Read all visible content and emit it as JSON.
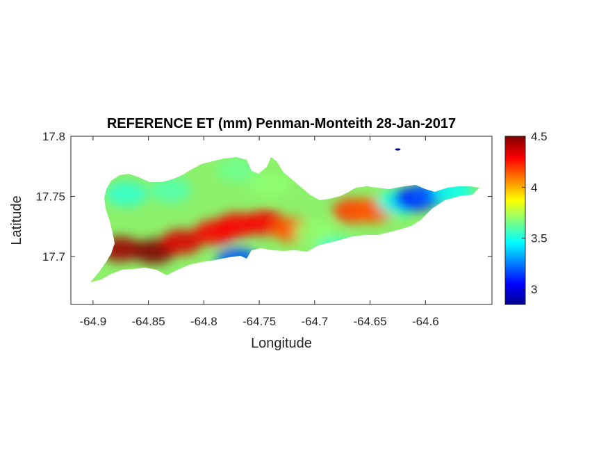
{
  "chart_data": {
    "type": "heatmap",
    "title": "REFERENCE ET (mm) Penman-Monteith 28-Jan-2017",
    "xlabel": "Longitude",
    "ylabel": "Latitude",
    "xlim": [
      -64.92,
      -64.54
    ],
    "ylim": [
      17.66,
      17.8
    ],
    "x_ticks": [
      -64.9,
      -64.85,
      -64.8,
      -64.75,
      -64.7,
      -64.65,
      -64.6
    ],
    "x_tick_labels": [
      "-64.9",
      "-64.85",
      "-64.8",
      "-64.75",
      "-64.7",
      "-64.65",
      "-64.6"
    ],
    "y_ticks": [
      17.7,
      17.75,
      17.8
    ],
    "y_tick_labels": [
      "17.7",
      "17.75",
      "17.8"
    ],
    "grid": false,
    "colormap": "jet",
    "colorbar": {
      "range": [
        2.85,
        4.5
      ],
      "ticks": [
        3,
        3.5,
        4,
        4.5
      ],
      "tick_labels": [
        "3",
        "3.5",
        "4",
        "4.5"
      ],
      "placement": "right"
    },
    "hotspots": [
      {
        "lon": -64.875,
        "lat": 17.706,
        "value": 4.45
      },
      {
        "lon": -64.845,
        "lat": 17.704,
        "value": 4.5
      },
      {
        "lon": -64.82,
        "lat": 17.712,
        "value": 4.35
      },
      {
        "lon": -64.79,
        "lat": 17.72,
        "value": 4.3
      },
      {
        "lon": -64.77,
        "lat": 17.726,
        "value": 4.3
      },
      {
        "lon": -64.745,
        "lat": 17.728,
        "value": 4.3
      },
      {
        "lon": -64.72,
        "lat": 17.722,
        "value": 4.15
      },
      {
        "lon": -64.665,
        "lat": 17.738,
        "value": 4.2
      },
      {
        "lon": -64.648,
        "lat": 17.738,
        "value": 4.15
      },
      {
        "lon": -64.87,
        "lat": 17.752,
        "value": 3.55
      },
      {
        "lon": -64.83,
        "lat": 17.755,
        "value": 3.6
      },
      {
        "lon": -64.77,
        "lat": 17.772,
        "value": 3.65
      },
      {
        "lon": -64.74,
        "lat": 17.76,
        "value": 3.7
      },
      {
        "lon": -64.7,
        "lat": 17.72,
        "value": 3.7
      },
      {
        "lon": -64.68,
        "lat": 17.705,
        "value": 3.55
      },
      {
        "lon": -64.625,
        "lat": 17.745,
        "value": 3.5
      },
      {
        "lon": -64.61,
        "lat": 17.748,
        "value": 3.1
      },
      {
        "lon": -64.595,
        "lat": 17.752,
        "value": 3.2
      },
      {
        "lon": -64.575,
        "lat": 17.754,
        "value": 3.5
      },
      {
        "lon": -64.77,
        "lat": 17.697,
        "value": 3.2
      },
      {
        "lon": -64.625,
        "lat": 17.789,
        "value": 2.9
      }
    ]
  }
}
